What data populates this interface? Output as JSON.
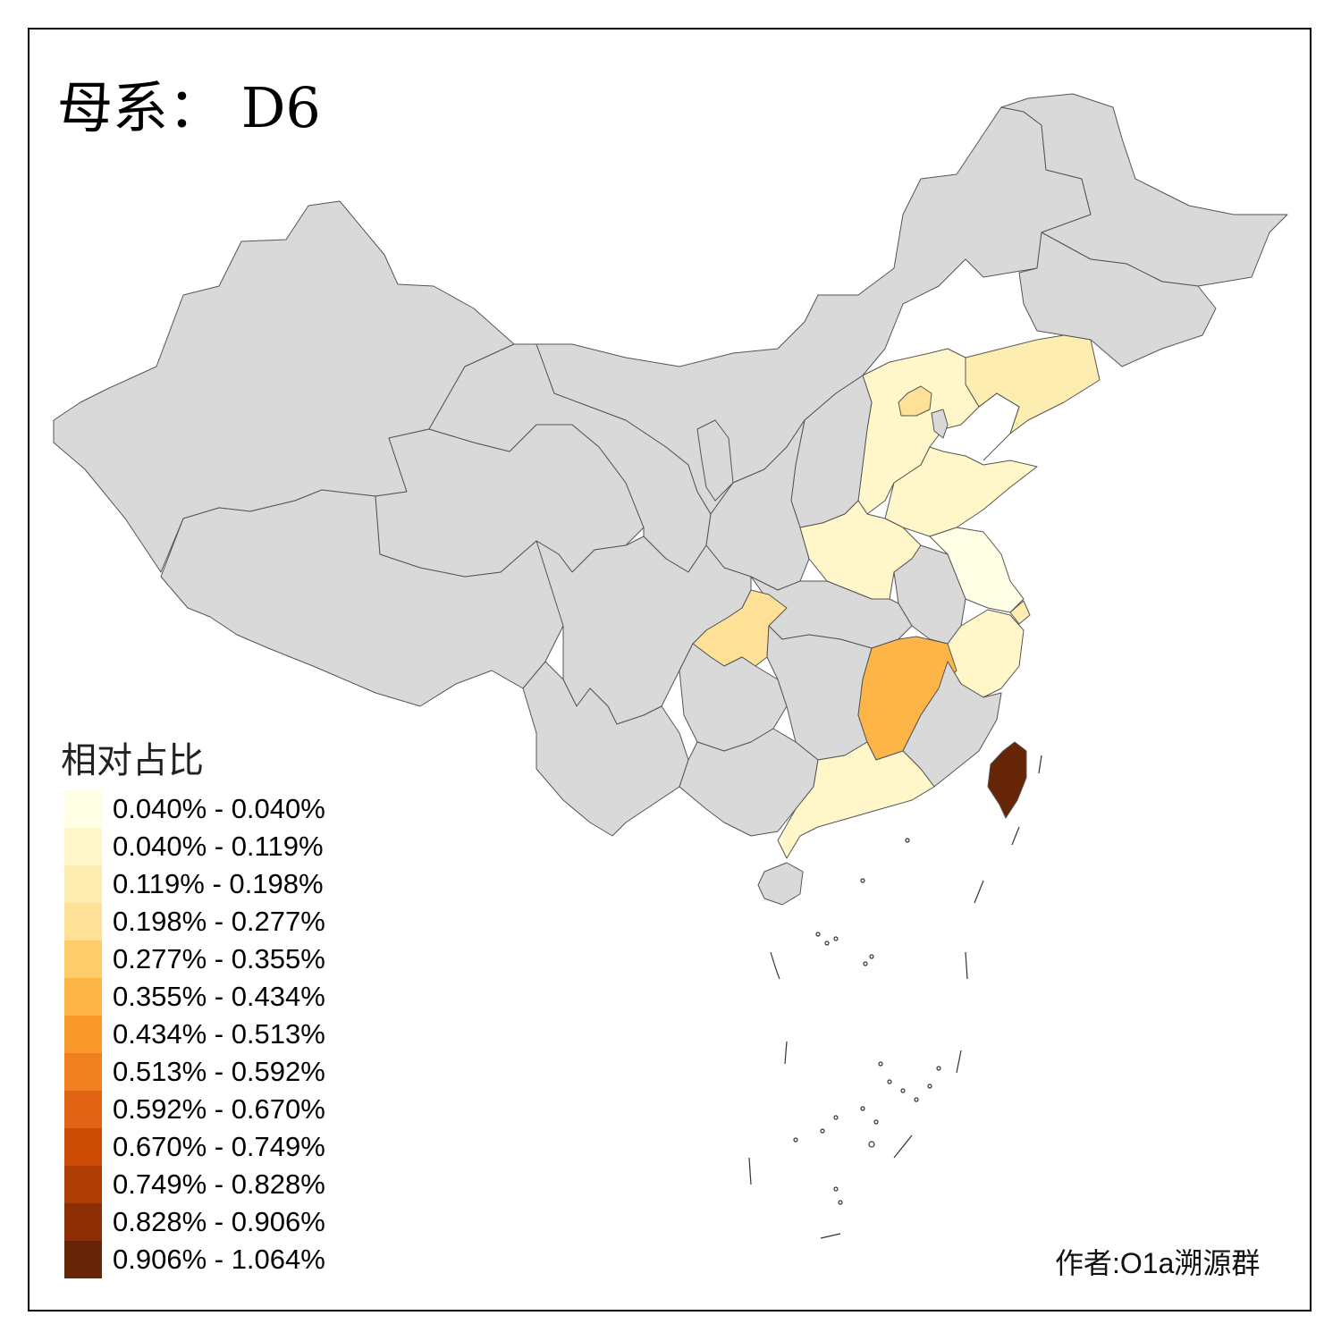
{
  "title": "母系： D6",
  "legend": {
    "title": "相对占比",
    "items": [
      {
        "label": "0.040% - 0.040%",
        "color": "#FFFFE5"
      },
      {
        "label": "0.040% - 0.119%",
        "color": "#FFF7C9"
      },
      {
        "label": "0.119% - 0.198%",
        "color": "#FEEDB0"
      },
      {
        "label": "0.198% - 0.277%",
        "color": "#FEE196"
      },
      {
        "label": "0.277% - 0.355%",
        "color": "#FECD6A"
      },
      {
        "label": "0.355% - 0.434%",
        "color": "#FEB547"
      },
      {
        "label": "0.434% - 0.513%",
        "color": "#FB9A2C"
      },
      {
        "label": "0.513% - 0.592%",
        "color": "#F07F1F"
      },
      {
        "label": "0.592% - 0.670%",
        "color": "#E06414"
      },
      {
        "label": "0.670% - 0.749%",
        "color": "#CB4C04"
      },
      {
        "label": "0.749% - 0.828%",
        "color": "#AD3D03"
      },
      {
        "label": "0.828% - 0.906%",
        "color": "#8C2D04"
      },
      {
        "label": "0.906% - 1.064%",
        "color": "#662506"
      }
    ]
  },
  "credit": "作者:O1a溯源群",
  "colors": {
    "no_data": "#D9D9D9",
    "border": "#555555",
    "background": "#FFFFFF"
  },
  "regions": [
    {
      "name": "Xinjiang",
      "bin": null
    },
    {
      "name": "Tibet",
      "bin": null
    },
    {
      "name": "Qinghai",
      "bin": null
    },
    {
      "name": "Inner Mongolia",
      "bin": null
    },
    {
      "name": "Gansu",
      "bin": null
    },
    {
      "name": "Ningxia",
      "bin": null
    },
    {
      "name": "Shaanxi",
      "bin": null
    },
    {
      "name": "Shanxi",
      "bin": null
    },
    {
      "name": "Sichuan",
      "bin": null
    },
    {
      "name": "Yunnan",
      "bin": null
    },
    {
      "name": "Guizhou",
      "bin": null
    },
    {
      "name": "Guangxi",
      "bin": null
    },
    {
      "name": "Hunan",
      "bin": null
    },
    {
      "name": "Hubei",
      "bin": null
    },
    {
      "name": "Anhui",
      "bin": null
    },
    {
      "name": "Fujian",
      "bin": null
    },
    {
      "name": "Hainan",
      "bin": null
    },
    {
      "name": "Heilongjiang",
      "bin": null
    },
    {
      "name": "Jilin",
      "bin": null
    },
    {
      "name": "Liaoning",
      "bin": 2
    },
    {
      "name": "Hebei",
      "bin": 1
    },
    {
      "name": "Beijing",
      "bin": 3
    },
    {
      "name": "Tianjin",
      "bin": null
    },
    {
      "name": "Shandong",
      "bin": 1
    },
    {
      "name": "Henan",
      "bin": 1
    },
    {
      "name": "Jiangsu",
      "bin": 0
    },
    {
      "name": "Shanghai",
      "bin": 2
    },
    {
      "name": "Zhejiang",
      "bin": 1
    },
    {
      "name": "Jiangxi",
      "bin": 5
    },
    {
      "name": "Guangdong",
      "bin": 1
    },
    {
      "name": "Chongqing",
      "bin": 3
    },
    {
      "name": "Taiwan",
      "bin": 12
    }
  ]
}
